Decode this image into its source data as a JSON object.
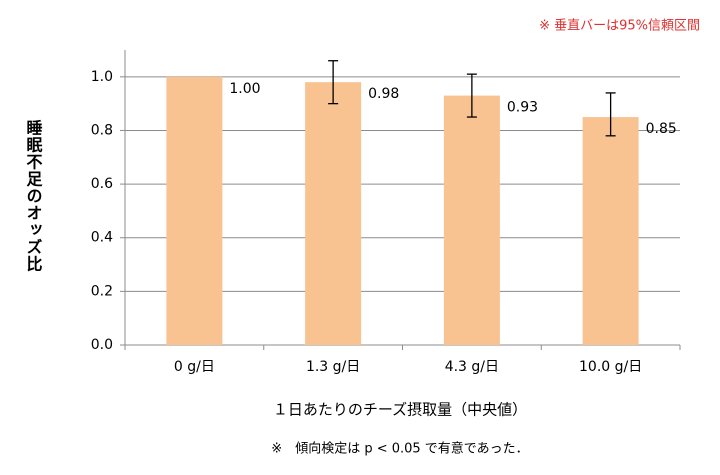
{
  "chart_data": {
    "type": "bar",
    "note": "※ 垂直バーは95%信頼区間",
    "ylabel": "睡眠不足のオッズ比",
    "xlabel": "１日あたりのチーズ摂取量（中央値）",
    "footnote": "※　傾向検定は p < 0.05 で有意であった．",
    "categories": [
      "0 g/日",
      "1.3 g/日",
      "4.3 g/日",
      "10.0 g/日"
    ],
    "values": [
      1.0,
      0.98,
      0.93,
      0.85
    ],
    "value_labels": [
      "1.00",
      "0.98",
      "0.93",
      "0.85"
    ],
    "ci_low": [
      null,
      0.9,
      0.85,
      0.78
    ],
    "ci_high": [
      null,
      1.06,
      1.01,
      0.94
    ],
    "color": "#f9c291",
    "note_color": "#e03030",
    "ylim": [
      0,
      1.1
    ],
    "yticks": [
      {
        "value": 0,
        "label": "0.0"
      },
      0.2,
      0.4,
      0.6,
      0.8,
      {
        "value": 1,
        "label": "1.0"
      }
    ],
    "grid": true
  }
}
